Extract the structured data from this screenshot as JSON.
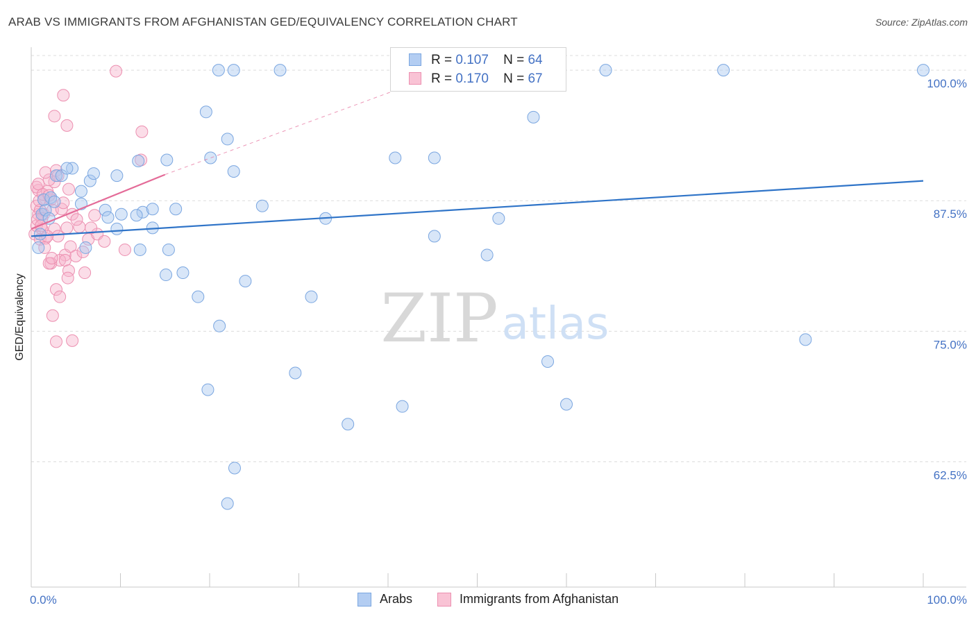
{
  "title": "ARAB VS IMMIGRANTS FROM AFGHANISTAN GED/EQUIVALENCY CORRELATION CHART",
  "source": "Source: ZipAtlas.com",
  "watermark": {
    "zip": "ZIP",
    "atlas": "atlas"
  },
  "legend": {
    "rows": [
      {
        "r_label": "R =",
        "r_value": "0.107",
        "n_label": "N =",
        "n_value": "64"
      },
      {
        "r_label": "R =",
        "r_value": "0.170",
        "n_label": "N =",
        "n_value": "67"
      }
    ]
  },
  "bottom_legend": {
    "arabs": "Arabs",
    "afghan": "Immigrants from Afghanistan"
  },
  "colors": {
    "arab_fill": "#a9c7f0",
    "arab_stroke": "#7aa6e0",
    "arab_line": "#2f74c8",
    "afghan_fill": "#f6b4cb",
    "afghan_stroke": "#ec8fb0",
    "afghan_line": "#e46b98",
    "label_blue": "#4472c4",
    "grid": "#dcdcdc"
  },
  "chart_data": {
    "type": "scatter",
    "title": "ARAB VS IMMIGRANTS FROM AFGHANISTAN GED/EQUIVALENCY CORRELATION CHART",
    "xlabel": "",
    "ylabel": "GED/Equivalency",
    "xlim": [
      0,
      100
    ],
    "ylim": [
      50.5,
      102.2
    ],
    "x_tick_labels": [
      "0.0%",
      "100.0%"
    ],
    "y_ticks": [
      {
        "value": 100.0,
        "label": "100.0%"
      },
      {
        "value": 87.5,
        "label": "87.5%"
      },
      {
        "value": 75.0,
        "label": "75.0%"
      },
      {
        "value": 62.5,
        "label": "62.5%"
      }
    ],
    "series": [
      {
        "name": "Arabs",
        "r": 0.107,
        "n": 64,
        "trend": {
          "x": [
            0,
            100
          ],
          "y": [
            84.1,
            89.4
          ]
        },
        "points": [
          [
            1.0,
            84.3
          ],
          [
            0.8,
            83.0
          ],
          [
            1.2,
            86.2
          ],
          [
            1.6,
            86.6
          ],
          [
            1.4,
            87.6
          ],
          [
            2.2,
            87.8
          ],
          [
            2.8,
            89.9
          ],
          [
            3.4,
            89.9
          ],
          [
            4.6,
            90.6
          ],
          [
            5.6,
            87.2
          ],
          [
            6.6,
            89.4
          ],
          [
            4.0,
            90.6
          ],
          [
            5.6,
            88.4
          ],
          [
            2.6,
            87.4
          ],
          [
            2.0,
            85.8
          ],
          [
            6.1,
            83.0
          ],
          [
            7.0,
            90.1
          ],
          [
            8.3,
            86.6
          ],
          [
            9.6,
            89.9
          ],
          [
            8.6,
            85.9
          ],
          [
            10.1,
            86.2
          ],
          [
            9.6,
            84.8
          ],
          [
            12.5,
            86.4
          ],
          [
            13.6,
            86.7
          ],
          [
            12.0,
            91.3
          ],
          [
            15.2,
            91.4
          ],
          [
            16.2,
            86.7
          ],
          [
            12.2,
            82.8
          ],
          [
            11.8,
            86.1
          ],
          [
            15.1,
            80.4
          ],
          [
            13.6,
            84.9
          ],
          [
            15.4,
            82.8
          ],
          [
            17.0,
            80.6
          ],
          [
            19.6,
            96.0
          ],
          [
            20.1,
            91.6
          ],
          [
            18.7,
            78.3
          ],
          [
            22.0,
            93.4
          ],
          [
            22.7,
            90.3
          ],
          [
            24.0,
            79.8
          ],
          [
            21.1,
            75.5
          ],
          [
            25.9,
            87.0
          ],
          [
            29.6,
            71.0
          ],
          [
            31.4,
            78.3
          ],
          [
            33.0,
            85.8
          ],
          [
            35.5,
            66.1
          ],
          [
            40.8,
            91.6
          ],
          [
            41.6,
            67.8
          ],
          [
            45.2,
            84.1
          ],
          [
            45.2,
            91.6
          ],
          [
            51.1,
            82.3
          ],
          [
            52.4,
            85.8
          ],
          [
            56.3,
            95.5
          ],
          [
            57.9,
            72.1
          ],
          [
            60.0,
            68.0
          ],
          [
            64.4,
            100.0
          ],
          [
            86.8,
            74.2
          ],
          [
            19.8,
            69.4
          ],
          [
            22.8,
            61.9
          ],
          [
            22.0,
            58.5
          ],
          [
            21.0,
            100.0
          ],
          [
            22.7,
            100.0
          ],
          [
            27.9,
            100.0
          ],
          [
            77.6,
            100.0
          ],
          [
            100.0,
            100.0
          ]
        ]
      },
      {
        "name": "Immigrants from Afghanistan",
        "r": 0.17,
        "n": 67,
        "trend": {
          "x": [
            0,
            15
          ],
          "y": [
            84.8,
            90.0
          ]
        },
        "trend_dashed": {
          "x": [
            15,
            47
          ],
          "y": [
            90.0,
            100.0
          ]
        },
        "points": [
          [
            0.4,
            84.3
          ],
          [
            0.6,
            85.1
          ],
          [
            0.8,
            86.2
          ],
          [
            0.6,
            87.0
          ],
          [
            0.8,
            88.5
          ],
          [
            1.0,
            86.6
          ],
          [
            1.2,
            84.8
          ],
          [
            1.4,
            86.2
          ],
          [
            1.0,
            83.8
          ],
          [
            1.6,
            83.9
          ],
          [
            1.2,
            85.8
          ],
          [
            1.4,
            87.6
          ],
          [
            0.6,
            88.8
          ],
          [
            1.8,
            88.4
          ],
          [
            2.2,
            87.6
          ],
          [
            2.6,
            89.3
          ],
          [
            2.0,
            89.5
          ],
          [
            1.6,
            90.2
          ],
          [
            2.8,
            90.4
          ],
          [
            3.0,
            89.9
          ],
          [
            2.4,
            86.6
          ],
          [
            3.4,
            86.7
          ],
          [
            2.6,
            84.8
          ],
          [
            3.0,
            84.1
          ],
          [
            4.0,
            84.9
          ],
          [
            4.6,
            86.2
          ],
          [
            5.4,
            85.0
          ],
          [
            3.8,
            82.3
          ],
          [
            4.4,
            83.1
          ],
          [
            3.2,
            81.8
          ],
          [
            2.8,
            79.0
          ],
          [
            3.2,
            78.3
          ],
          [
            2.2,
            81.5
          ],
          [
            3.8,
            81.8
          ],
          [
            4.2,
            80.8
          ],
          [
            5.0,
            82.2
          ],
          [
            5.8,
            82.6
          ],
          [
            4.1,
            80.1
          ],
          [
            6.0,
            80.6
          ],
          [
            6.4,
            83.8
          ],
          [
            7.4,
            84.3
          ],
          [
            2.6,
            95.6
          ],
          [
            3.6,
            97.6
          ],
          [
            4.0,
            94.7
          ],
          [
            9.5,
            99.9
          ],
          [
            12.4,
            94.1
          ],
          [
            10.5,
            82.8
          ],
          [
            12.3,
            91.4
          ],
          [
            2.4,
            76.5
          ],
          [
            2.8,
            74.0
          ],
          [
            4.6,
            74.1
          ],
          [
            2.0,
            81.5
          ],
          [
            1.8,
            84.1
          ],
          [
            0.7,
            85.7
          ],
          [
            1.1,
            85.1
          ],
          [
            0.9,
            87.5
          ],
          [
            0.8,
            89.1
          ],
          [
            1.3,
            88.1
          ],
          [
            2.0,
            88.0
          ],
          [
            3.6,
            87.3
          ],
          [
            4.2,
            88.6
          ],
          [
            5.1,
            85.7
          ],
          [
            6.7,
            84.9
          ],
          [
            8.2,
            83.6
          ],
          [
            7.1,
            86.1
          ],
          [
            1.5,
            83.0
          ],
          [
            2.3,
            82.0
          ]
        ]
      }
    ]
  }
}
